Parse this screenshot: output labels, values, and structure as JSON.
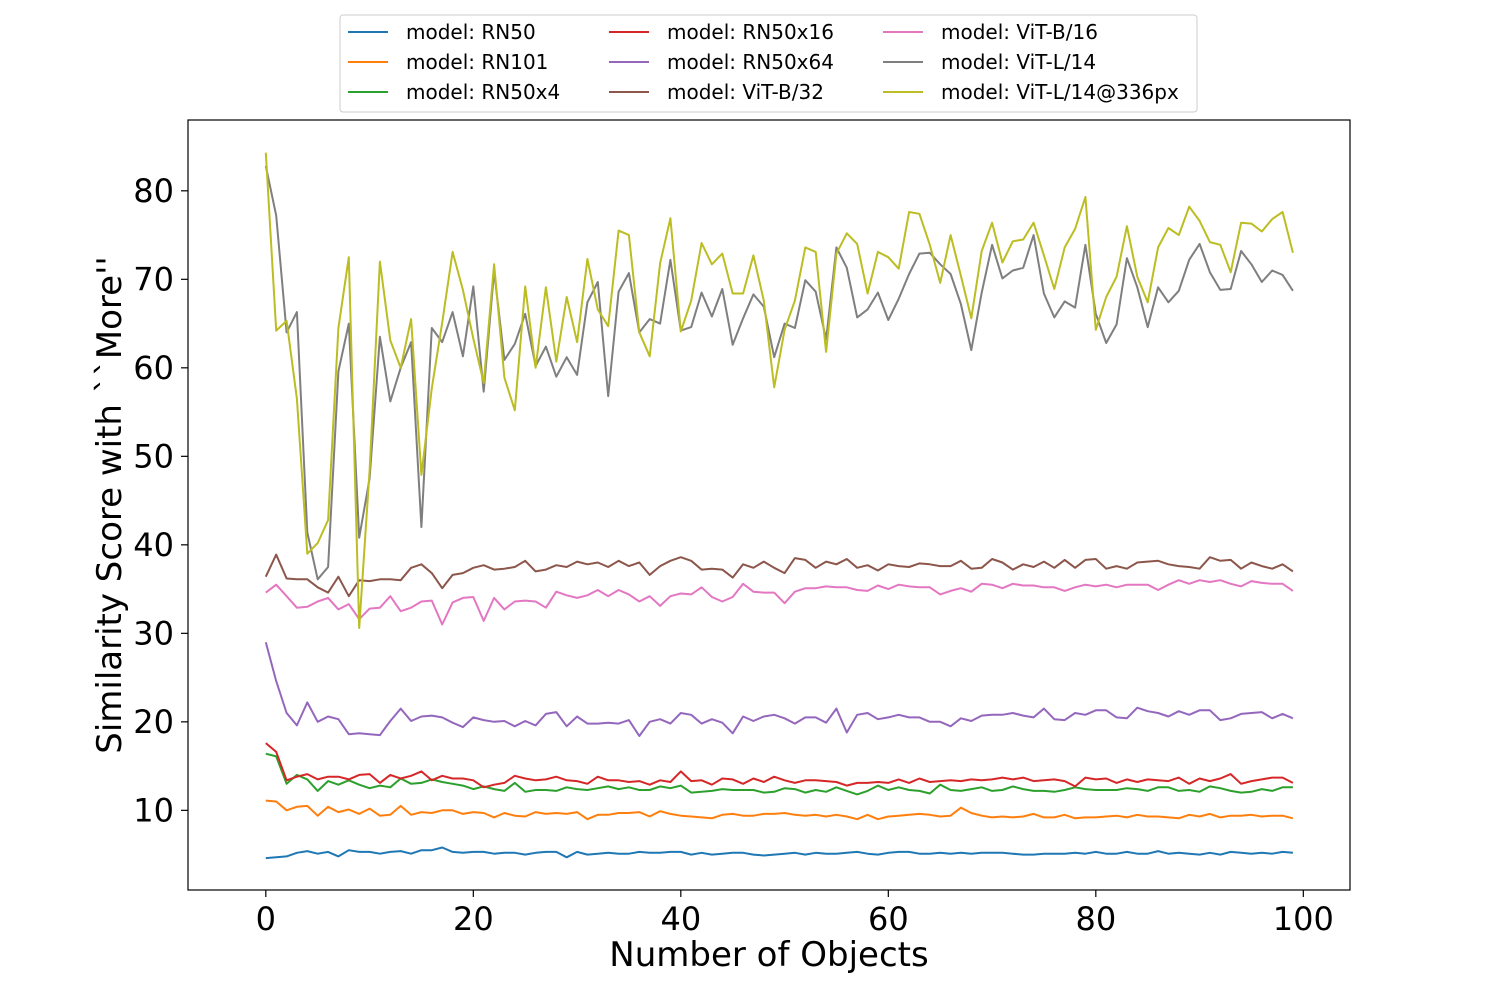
{
  "chart_data": {
    "type": "line",
    "title": "",
    "xlabel": "Number of Objects",
    "ylabel": "Similarity Score with ``More''",
    "xlim": [
      -7.5,
      104.5
    ],
    "ylim": [
      1,
      88
    ],
    "xticks": [
      0,
      20,
      40,
      60,
      80,
      100
    ],
    "yticks": [
      10,
      20,
      30,
      40,
      50,
      60,
      70,
      80
    ],
    "legend_position": "above plot, center",
    "legend_columns": 3,
    "x": "0..99 (step 1)",
    "series": [
      {
        "name": "model: RN50",
        "color": "#1f77b4",
        "values": [
          4.6,
          4.7,
          4.8,
          5.2,
          5.4,
          5.1,
          5.3,
          4.8,
          5.5,
          5.3,
          5.3,
          5.1,
          5.3,
          5.4,
          5.1,
          5.5,
          5.5,
          5.8,
          5.3,
          5.2,
          5.3,
          5.3,
          5.1,
          5.2,
          5.2,
          5.0,
          5.2,
          5.3,
          5.3,
          4.7,
          5.3,
          5.0,
          5.1,
          5.2,
          5.1,
          5.1,
          5.3,
          5.2,
          5.2,
          5.3,
          5.3,
          5.0,
          5.2,
          5.0,
          5.1,
          5.2,
          5.2,
          5.0,
          4.9,
          5.0,
          5.1,
          5.2,
          5.0,
          5.2,
          5.1,
          5.1,
          5.2,
          5.3,
          5.1,
          5.0,
          5.2,
          5.3,
          5.3,
          5.1,
          5.1,
          5.2,
          5.1,
          5.2,
          5.1,
          5.2,
          5.2,
          5.2,
          5.1,
          5.0,
          5.0,
          5.1,
          5.1,
          5.1,
          5.2,
          5.1,
          5.3,
          5.1,
          5.1,
          5.3,
          5.1,
          5.1,
          5.4,
          5.1,
          5.2,
          5.1,
          5.0,
          5.2,
          5.0,
          5.3,
          5.2,
          5.1,
          5.2,
          5.1,
          5.3,
          5.2
        ]
      },
      {
        "name": "model: RN101",
        "color": "#ff7f0e",
        "values": [
          11.1,
          11.0,
          10.0,
          10.4,
          10.5,
          9.4,
          10.4,
          9.8,
          10.1,
          9.6,
          10.2,
          9.4,
          9.5,
          10.5,
          9.5,
          9.8,
          9.7,
          10.0,
          10.0,
          9.6,
          9.8,
          9.7,
          9.2,
          9.7,
          9.4,
          9.3,
          9.8,
          9.6,
          9.7,
          9.6,
          9.8,
          9.0,
          9.5,
          9.5,
          9.7,
          9.7,
          9.8,
          9.3,
          9.9,
          9.6,
          9.4,
          9.3,
          9.2,
          9.1,
          9.5,
          9.6,
          9.4,
          9.4,
          9.6,
          9.6,
          9.7,
          9.5,
          9.4,
          9.5,
          9.3,
          9.5,
          9.3,
          9.0,
          9.5,
          9.0,
          9.3,
          9.4,
          9.5,
          9.6,
          9.5,
          9.3,
          9.4,
          10.3,
          9.7,
          9.4,
          9.2,
          9.3,
          9.2,
          9.3,
          9.6,
          9.2,
          9.2,
          9.5,
          9.1,
          9.2,
          9.2,
          9.3,
          9.4,
          9.2,
          9.5,
          9.3,
          9.3,
          9.2,
          9.1,
          9.5,
          9.3,
          9.6,
          9.2,
          9.4,
          9.4,
          9.5,
          9.3,
          9.4,
          9.4,
          9.1
        ]
      },
      {
        "name": "model: RN50x4",
        "color": "#2ca02c",
        "values": [
          16.4,
          16.1,
          13.0,
          14.0,
          13.5,
          12.2,
          13.3,
          12.9,
          13.4,
          12.9,
          12.5,
          12.8,
          12.6,
          13.6,
          13.0,
          13.1,
          13.5,
          13.2,
          13.0,
          12.8,
          12.4,
          12.7,
          12.4,
          12.2,
          13.1,
          12.1,
          12.3,
          12.3,
          12.2,
          12.6,
          12.4,
          12.3,
          12.5,
          12.7,
          12.4,
          12.6,
          12.3,
          12.3,
          12.7,
          12.5,
          12.8,
          12.0,
          12.1,
          12.2,
          12.4,
          12.3,
          12.3,
          12.3,
          12.0,
          12.1,
          12.5,
          12.4,
          12.0,
          12.3,
          12.1,
          12.6,
          12.2,
          11.8,
          12.2,
          12.8,
          12.3,
          12.6,
          12.3,
          12.2,
          11.9,
          12.9,
          12.3,
          12.2,
          12.4,
          12.6,
          12.2,
          12.3,
          12.7,
          12.4,
          12.2,
          12.2,
          12.1,
          12.3,
          12.6,
          12.4,
          12.3,
          12.3,
          12.3,
          12.5,
          12.4,
          12.2,
          12.6,
          12.6,
          12.2,
          12.3,
          12.1,
          12.7,
          12.5,
          12.2,
          12.0,
          12.1,
          12.4,
          12.2,
          12.6,
          12.6
        ]
      },
      {
        "name": "model: RN50x16",
        "color": "#d62728",
        "values": [
          17.6,
          16.6,
          13.4,
          13.8,
          14.1,
          13.5,
          13.8,
          13.8,
          13.5,
          14.0,
          14.1,
          13.1,
          14.0,
          13.6,
          13.9,
          14.4,
          13.4,
          13.9,
          13.6,
          13.6,
          13.4,
          12.6,
          12.9,
          13.1,
          13.9,
          13.6,
          13.4,
          13.5,
          13.8,
          13.4,
          13.3,
          13.0,
          13.8,
          13.4,
          13.4,
          13.2,
          13.3,
          12.9,
          13.4,
          13.2,
          14.4,
          13.3,
          13.4,
          12.9,
          13.6,
          13.5,
          13.0,
          13.6,
          13.2,
          13.8,
          13.4,
          13.1,
          13.4,
          13.4,
          13.3,
          13.2,
          12.8,
          13.1,
          13.1,
          13.2,
          13.1,
          13.5,
          13.1,
          13.6,
          13.2,
          13.3,
          13.4,
          13.3,
          13.5,
          13.4,
          13.5,
          13.7,
          13.5,
          13.7,
          13.3,
          13.4,
          13.5,
          13.3,
          12.7,
          13.7,
          13.5,
          13.6,
          13.1,
          13.5,
          13.2,
          13.5,
          13.4,
          13.3,
          13.7,
          13.0,
          13.6,
          13.3,
          13.6,
          14.1,
          13.0,
          13.3,
          13.5,
          13.7,
          13.7,
          13.1
        ]
      },
      {
        "name": "model: RN50x64",
        "color": "#9467bd",
        "values": [
          29.0,
          24.6,
          21.0,
          19.6,
          22.2,
          20.0,
          20.6,
          20.3,
          18.6,
          18.7,
          18.6,
          18.5,
          20.1,
          21.5,
          20.1,
          20.6,
          20.7,
          20.5,
          19.9,
          19.4,
          20.5,
          20.2,
          20.0,
          20.1,
          19.5,
          20.1,
          19.6,
          20.9,
          21.1,
          19.5,
          20.6,
          19.8,
          19.8,
          19.9,
          19.8,
          20.2,
          18.4,
          20.0,
          20.3,
          19.8,
          21.0,
          20.8,
          19.8,
          20.3,
          19.9,
          18.7,
          20.6,
          20.1,
          20.6,
          20.8,
          20.4,
          19.8,
          20.5,
          20.5,
          19.9,
          21.5,
          18.8,
          20.8,
          21.0,
          20.3,
          20.5,
          20.8,
          20.5,
          20.5,
          20.0,
          20.0,
          19.5,
          20.4,
          20.1,
          20.7,
          20.8,
          20.8,
          21.0,
          20.7,
          20.5,
          21.5,
          20.3,
          20.2,
          21.0,
          20.8,
          21.3,
          21.3,
          20.5,
          20.4,
          21.6,
          21.2,
          21.0,
          20.6,
          21.2,
          20.8,
          21.3,
          21.3,
          20.2,
          20.4,
          20.9,
          21.0,
          21.1,
          20.4,
          20.9,
          20.4
        ]
      },
      {
        "name": "model: ViT-B/32",
        "color": "#8c564b",
        "values": [
          36.4,
          38.9,
          36.2,
          36.1,
          36.1,
          35.2,
          34.6,
          36.4,
          34.2,
          36.0,
          35.9,
          36.1,
          36.1,
          36.0,
          37.4,
          37.8,
          36.8,
          35.1,
          36.6,
          36.8,
          37.4,
          37.7,
          37.2,
          37.3,
          37.5,
          38.2,
          37.0,
          37.2,
          37.7,
          37.5,
          38.1,
          37.8,
          38.0,
          37.5,
          38.2,
          37.6,
          38.0,
          36.6,
          37.6,
          38.2,
          38.6,
          38.2,
          37.2,
          37.3,
          37.2,
          36.3,
          37.8,
          37.4,
          38.1,
          37.4,
          36.8,
          38.5,
          38.3,
          37.4,
          38.1,
          37.8,
          38.4,
          37.4,
          37.7,
          37.1,
          37.8,
          37.6,
          37.5,
          37.9,
          37.8,
          37.6,
          37.6,
          38.2,
          37.3,
          37.4,
          38.4,
          38.0,
          37.2,
          37.8,
          37.5,
          38.1,
          37.4,
          38.3,
          37.4,
          38.3,
          38.4,
          37.3,
          37.6,
          37.3,
          38.0,
          38.1,
          38.2,
          37.8,
          37.6,
          37.5,
          37.3,
          38.6,
          38.2,
          38.3,
          37.3,
          38.0,
          37.6,
          37.3,
          37.8,
          37.0
        ]
      },
      {
        "name": "model: ViT-B/16",
        "color": "#e377c2",
        "values": [
          34.6,
          35.5,
          34.2,
          32.9,
          33.0,
          33.6,
          34.0,
          32.7,
          33.3,
          31.6,
          32.8,
          32.9,
          34.2,
          32.5,
          32.9,
          33.6,
          33.7,
          31.0,
          33.5,
          34.0,
          34.1,
          31.4,
          34.0,
          32.7,
          33.6,
          33.7,
          33.6,
          32.9,
          34.7,
          34.3,
          34.0,
          34.3,
          34.9,
          34.2,
          34.9,
          34.4,
          33.6,
          34.2,
          33.1,
          34.2,
          34.5,
          34.4,
          35.2,
          34.1,
          33.6,
          34.1,
          35.6,
          34.7,
          34.6,
          34.6,
          33.4,
          34.7,
          35.1,
          35.1,
          35.3,
          35.2,
          35.2,
          34.9,
          34.8,
          35.4,
          35.0,
          35.5,
          35.3,
          35.2,
          35.2,
          34.4,
          34.8,
          35.1,
          34.7,
          35.6,
          35.5,
          35.1,
          35.6,
          35.4,
          35.4,
          35.2,
          35.2,
          34.8,
          35.2,
          35.5,
          35.3,
          35.5,
          35.2,
          35.5,
          35.5,
          35.5,
          34.9,
          35.5,
          36.0,
          35.6,
          36.0,
          35.8,
          36.0,
          35.6,
          35.3,
          35.9,
          35.7,
          35.6,
          35.6,
          34.8
        ]
      },
      {
        "name": "model: ViT-L/14",
        "color": "#7f7f7f",
        "values": [
          82.8,
          77.2,
          64.0,
          66.3,
          41.4,
          36.1,
          37.5,
          59.6,
          65.0,
          40.8,
          47.5,
          63.5,
          56.2,
          60.0,
          62.9,
          42.0,
          64.5,
          62.9,
          66.3,
          61.3,
          69.2,
          57.3,
          70.9,
          60.9,
          62.7,
          66.1,
          60.2,
          62.4,
          59.0,
          61.2,
          59.2,
          67.4,
          69.7,
          56.8,
          68.6,
          70.7,
          64.0,
          65.5,
          65.0,
          72.2,
          64.2,
          64.6,
          68.5,
          65.8,
          68.9,
          62.6,
          65.6,
          68.3,
          66.9,
          61.2,
          65.0,
          64.5,
          69.9,
          68.6,
          63.2,
          73.6,
          71.3,
          65.7,
          66.6,
          68.5,
          65.4,
          67.8,
          70.6,
          72.9,
          73.0,
          71.7,
          70.6,
          67.2,
          62.0,
          68.5,
          73.9,
          70.1,
          71.0,
          71.3,
          75.0,
          68.4,
          65.7,
          67.5,
          66.8,
          73.9,
          66.1,
          62.8,
          64.9,
          72.4,
          69.1,
          64.6,
          69.1,
          67.4,
          68.7,
          72.2,
          74.0,
          70.8,
          68.8,
          68.9,
          73.2,
          71.7,
          69.7,
          71.0,
          70.5,
          68.7
        ]
      },
      {
        "name": "model: ViT-L/14@336px",
        "color": "#bcbd22",
        "values": [
          84.3,
          64.2,
          65.3,
          56.5,
          39.0,
          40.2,
          42.8,
          64.5,
          72.5,
          30.6,
          48.4,
          72.0,
          63.1,
          60.0,
          65.5,
          47.9,
          57.7,
          65.1,
          73.1,
          68.8,
          63.3,
          58.3,
          71.7,
          58.9,
          55.2,
          69.2,
          60.0,
          69.1,
          60.7,
          68.0,
          62.9,
          72.3,
          66.6,
          64.7,
          75.5,
          75.0,
          64.0,
          61.3,
          71.8,
          76.9,
          64.1,
          67.6,
          74.1,
          71.7,
          72.9,
          68.4,
          68.4,
          72.7,
          67.6,
          57.8,
          64.3,
          67.6,
          73.6,
          73.1,
          61.8,
          72.9,
          75.2,
          74.0,
          68.4,
          73.1,
          72.5,
          71.2,
          77.6,
          77.4,
          73.9,
          69.6,
          75.0,
          70.4,
          65.6,
          73.2,
          76.4,
          71.9,
          74.3,
          74.5,
          76.4,
          72.7,
          68.9,
          73.6,
          75.7,
          79.3,
          64.3,
          68.0,
          70.3,
          76.0,
          70.3,
          67.4,
          73.6,
          75.8,
          75.0,
          78.2,
          76.6,
          74.2,
          73.9,
          70.8,
          76.4,
          76.3,
          75.4,
          76.8,
          77.6,
          73.0
        ]
      }
    ]
  }
}
